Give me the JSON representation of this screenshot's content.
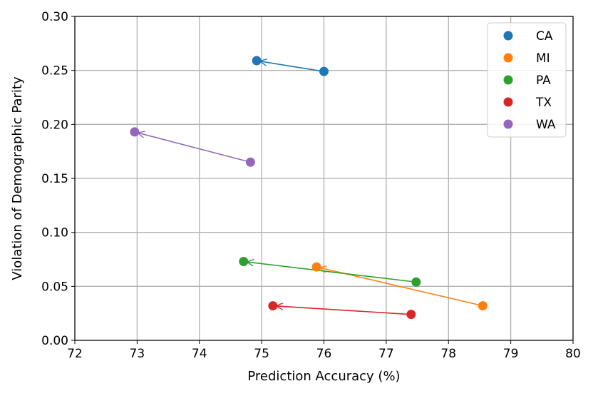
{
  "chart_data": {
    "type": "scatter",
    "title": "",
    "xlabel": "Prediction Accuracy (%)",
    "ylabel": "Violation of Demographic Parity",
    "xlim": [
      72,
      80
    ],
    "ylim": [
      0.0,
      0.3
    ],
    "xticks": [
      "72",
      "73",
      "74",
      "75",
      "76",
      "77",
      "78",
      "79",
      "80"
    ],
    "yticks": [
      "0.00",
      "0.05",
      "0.10",
      "0.15",
      "0.20",
      "0.25",
      "0.30"
    ],
    "grid": true,
    "legend_position": "top-right",
    "arrows": true,
    "series": [
      {
        "name": "CA",
        "color": "#1f77b4",
        "start": {
          "x": 76.0,
          "y": 0.249
        },
        "end": {
          "x": 74.92,
          "y": 0.259
        }
      },
      {
        "name": "MI",
        "color": "#ff7f0e",
        "start": {
          "x": 78.55,
          "y": 0.032
        },
        "end": {
          "x": 75.88,
          "y": 0.068
        }
      },
      {
        "name": "PA",
        "color": "#2ca02c",
        "start": {
          "x": 77.48,
          "y": 0.054
        },
        "end": {
          "x": 74.71,
          "y": 0.073
        }
      },
      {
        "name": "TX",
        "color": "#d62728",
        "start": {
          "x": 77.4,
          "y": 0.024
        },
        "end": {
          "x": 75.18,
          "y": 0.032
        }
      },
      {
        "name": "WA",
        "color": "#9467bd",
        "start": {
          "x": 74.82,
          "y": 0.165
        },
        "end": {
          "x": 72.96,
          "y": 0.193
        }
      }
    ]
  }
}
